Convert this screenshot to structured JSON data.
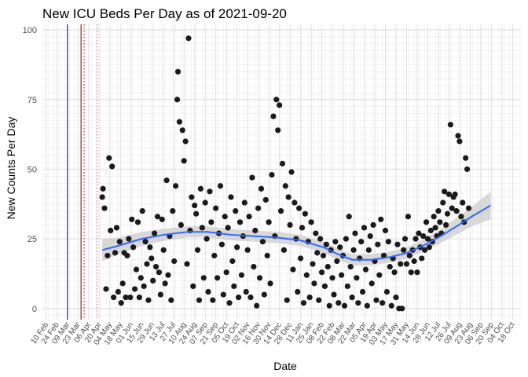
{
  "chart_data": {
    "type": "scatter",
    "title": "New ICU Beds Per Day as of 2021-09-20",
    "xlabel": "Date",
    "ylabel": "New Counts Per Day",
    "ylim": [
      -4,
      102
    ],
    "y_ticks": [
      0,
      25,
      50,
      75,
      100
    ],
    "grid": true,
    "x_range": [
      "2020-02-06",
      "2021-10-28"
    ],
    "x_tick_labels": [
      "10 Feb",
      "24 Feb",
      "09 Mar",
      "23 Mar",
      "06 Apr",
      "20 Apr",
      "04 May",
      "18 May",
      "01 Jun",
      "15 Jun",
      "29 Jun",
      "13 Jul",
      "27 Jul",
      "10 Aug",
      "24 Aug",
      "07 Sep",
      "21 Sep",
      "05 Oct",
      "19 Oct",
      "02 Nov",
      "16 Nov",
      "30 Nov",
      "14 Dec",
      "28 Dec",
      "11 Jan",
      "25 Jan",
      "08 Feb",
      "22 Feb",
      "08 Mar",
      "22 Mar",
      "05 Apr",
      "19 Apr",
      "03 May",
      "17 May",
      "31 May",
      "14 Jun",
      "28 Jun",
      "12 Jul",
      "26 Jul",
      "09 Aug",
      "23 Aug",
      "06 Sep",
      "20 Sep",
      "04 Oct",
      "18 Oct"
    ],
    "reference_lines": [
      {
        "date": "2020-03-09",
        "style": "solid",
        "color": "#00008b"
      },
      {
        "date": "2020-03-27",
        "style": "solid",
        "color": "#8b0000"
      },
      {
        "date": "2020-03-31",
        "style": "dotted",
        "color": "#8b0000"
      },
      {
        "date": "2020-04-17",
        "style": "dotted",
        "color": "#cc6677"
      }
    ],
    "trend": {
      "color": "#3366ff",
      "band_color": "#cccccc",
      "points": [
        [
          "2020-04-24",
          21
        ],
        [
          "2020-05-15",
          22.5
        ],
        [
          "2020-06-15",
          25
        ],
        [
          "2020-07-15",
          26.5
        ],
        [
          "2020-08-15",
          27.5
        ],
        [
          "2020-09-10",
          27.5
        ],
        [
          "2020-10-10",
          26.5
        ],
        [
          "2020-11-10",
          26
        ],
        [
          "2020-12-10",
          25.5
        ],
        [
          "2021-01-10",
          24.5
        ],
        [
          "2021-02-10",
          22
        ],
        [
          "2021-03-01",
          19.5
        ],
        [
          "2021-03-20",
          17.5
        ],
        [
          "2021-04-15",
          17.5
        ],
        [
          "2021-05-10",
          18.5
        ],
        [
          "2021-06-01",
          20
        ],
        [
          "2021-06-25",
          23
        ],
        [
          "2021-07-15",
          26
        ],
        [
          "2021-08-05",
          29.5
        ],
        [
          "2021-08-25",
          33
        ],
        [
          "2021-09-19",
          37
        ]
      ],
      "band_halfwidth": [
        4,
        3,
        2.5,
        2.2,
        2,
        2,
        2,
        2,
        2,
        2,
        2,
        2,
        2,
        2,
        2,
        2,
        2.2,
        2.5,
        3,
        3.5,
        5
      ]
    },
    "points": [
      [
        "2020-04-24",
        40
      ],
      [
        "2020-04-25",
        43
      ],
      [
        "2020-04-27",
        36
      ],
      [
        "2020-04-29",
        7
      ],
      [
        "2020-05-01",
        19
      ],
      [
        "2020-05-03",
        54
      ],
      [
        "2020-05-05",
        28
      ],
      [
        "2020-05-07",
        51
      ],
      [
        "2020-05-09",
        4
      ],
      [
        "2020-05-11",
        20
      ],
      [
        "2020-05-13",
        29
      ],
      [
        "2020-05-15",
        6
      ],
      [
        "2020-05-17",
        24
      ],
      [
        "2020-05-19",
        2
      ],
      [
        "2020-05-21",
        9
      ],
      [
        "2020-05-23",
        20
      ],
      [
        "2020-05-25",
        4
      ],
      [
        "2020-05-27",
        19
      ],
      [
        "2020-05-29",
        25
      ],
      [
        "2020-05-31",
        4
      ],
      [
        "2020-06-02",
        32
      ],
      [
        "2020-06-04",
        22
      ],
      [
        "2020-06-06",
        7
      ],
      [
        "2020-06-08",
        14
      ],
      [
        "2020-06-10",
        31
      ],
      [
        "2020-06-12",
        4
      ],
      [
        "2020-06-14",
        11
      ],
      [
        "2020-06-16",
        35
      ],
      [
        "2020-06-18",
        8
      ],
      [
        "2020-06-20",
        24
      ],
      [
        "2020-06-22",
        16
      ],
      [
        "2020-06-24",
        3
      ],
      [
        "2020-06-26",
        22
      ],
      [
        "2020-06-28",
        18
      ],
      [
        "2020-06-30",
        10
      ],
      [
        "2020-07-02",
        27
      ],
      [
        "2020-07-04",
        15
      ],
      [
        "2020-07-06",
        33
      ],
      [
        "2020-07-08",
        13
      ],
      [
        "2020-07-10",
        5
      ],
      [
        "2020-07-12",
        32
      ],
      [
        "2020-07-14",
        21
      ],
      [
        "2020-07-16",
        9
      ],
      [
        "2020-07-18",
        46
      ],
      [
        "2020-07-20",
        12
      ],
      [
        "2020-07-22",
        26
      ],
      [
        "2020-07-24",
        3
      ],
      [
        "2020-07-26",
        35
      ],
      [
        "2020-07-28",
        17
      ],
      [
        "2020-07-30",
        44
      ],
      [
        "2020-08-01",
        75
      ],
      [
        "2020-08-02",
        85
      ],
      [
        "2020-08-04",
        67
      ],
      [
        "2020-08-06",
        30
      ],
      [
        "2020-08-08",
        64
      ],
      [
        "2020-08-10",
        53
      ],
      [
        "2020-08-12",
        60
      ],
      [
        "2020-08-14",
        16
      ],
      [
        "2020-08-16",
        97
      ],
      [
        "2020-08-18",
        28
      ],
      [
        "2020-08-20",
        40
      ],
      [
        "2020-08-22",
        8
      ],
      [
        "2020-08-24",
        37
      ],
      [
        "2020-08-26",
        34
      ],
      [
        "2020-08-28",
        21
      ],
      [
        "2020-08-30",
        3
      ],
      [
        "2020-09-01",
        43
      ],
      [
        "2020-09-03",
        29
      ],
      [
        "2020-09-05",
        11
      ],
      [
        "2020-09-07",
        38
      ],
      [
        "2020-09-09",
        25
      ],
      [
        "2020-09-11",
        6
      ],
      [
        "2020-09-13",
        42
      ],
      [
        "2020-09-15",
        31
      ],
      [
        "2020-09-17",
        3
      ],
      [
        "2020-09-19",
        19
      ],
      [
        "2020-09-21",
        36
      ],
      [
        "2020-09-23",
        11
      ],
      [
        "2020-09-25",
        27
      ],
      [
        "2020-09-27",
        44
      ],
      [
        "2020-09-29",
        23
      ],
      [
        "2020-10-01",
        5
      ],
      [
        "2020-10-03",
        33
      ],
      [
        "2020-10-05",
        13
      ],
      [
        "2020-10-07",
        29
      ],
      [
        "2020-10-09",
        2
      ],
      [
        "2020-10-11",
        40
      ],
      [
        "2020-10-13",
        17
      ],
      [
        "2020-10-15",
        8
      ],
      [
        "2020-10-17",
        35
      ],
      [
        "2020-10-19",
        22
      ],
      [
        "2020-10-21",
        4
      ],
      [
        "2020-10-23",
        31
      ],
      [
        "2020-10-25",
        12
      ],
      [
        "2020-10-27",
        26
      ],
      [
        "2020-10-29",
        38
      ],
      [
        "2020-10-31",
        6
      ],
      [
        "2020-11-02",
        21
      ],
      [
        "2020-11-04",
        33
      ],
      [
        "2020-11-06",
        4
      ],
      [
        "2020-11-08",
        47
      ],
      [
        "2020-11-10",
        15
      ],
      [
        "2020-11-12",
        28
      ],
      [
        "2020-11-14",
        1
      ],
      [
        "2020-11-16",
        36
      ],
      [
        "2020-11-18",
        11
      ],
      [
        "2020-11-20",
        43
      ],
      [
        "2020-11-22",
        24
      ],
      [
        "2020-11-24",
        5
      ],
      [
        "2020-11-26",
        39
      ],
      [
        "2020-11-28",
        19
      ],
      [
        "2020-11-30",
        31
      ],
      [
        "2020-12-02",
        9
      ],
      [
        "2020-12-04",
        48
      ],
      [
        "2020-12-06",
        69
      ],
      [
        "2020-12-08",
        26
      ],
      [
        "2020-12-10",
        75
      ],
      [
        "2020-12-12",
        64
      ],
      [
        "2020-12-14",
        73
      ],
      [
        "2020-12-16",
        35
      ],
      [
        "2020-12-18",
        52
      ],
      [
        "2020-12-20",
        21
      ],
      [
        "2020-12-22",
        44
      ],
      [
        "2020-12-24",
        3
      ],
      [
        "2020-12-26",
        40
      ],
      [
        "2020-12-28",
        30
      ],
      [
        "2020-12-30",
        49
      ],
      [
        "2021-01-01",
        14
      ],
      [
        "2021-01-03",
        38
      ],
      [
        "2021-01-05",
        25
      ],
      [
        "2021-01-07",
        6
      ],
      [
        "2021-01-09",
        36
      ],
      [
        "2021-01-11",
        18
      ],
      [
        "2021-01-13",
        29
      ],
      [
        "2021-01-15",
        2
      ],
      [
        "2021-01-17",
        34
      ],
      [
        "2021-01-19",
        12
      ],
      [
        "2021-01-21",
        24
      ],
      [
        "2021-01-23",
        4
      ],
      [
        "2021-01-25",
        31
      ],
      [
        "2021-01-27",
        16
      ],
      [
        "2021-01-29",
        9
      ],
      [
        "2021-01-31",
        27
      ],
      [
        "2021-02-02",
        20
      ],
      [
        "2021-02-04",
        3
      ],
      [
        "2021-02-06",
        25
      ],
      [
        "2021-02-08",
        13
      ],
      [
        "2021-02-10",
        19
      ],
      [
        "2021-02-12",
        8
      ],
      [
        "2021-02-14",
        23
      ],
      [
        "2021-02-16",
        15
      ],
      [
        "2021-02-18",
        1
      ],
      [
        "2021-02-20",
        21
      ],
      [
        "2021-02-22",
        11
      ],
      [
        "2021-02-24",
        5
      ],
      [
        "2021-02-26",
        24
      ],
      [
        "2021-02-28",
        17
      ],
      [
        "2021-03-02",
        2
      ],
      [
        "2021-03-04",
        22
      ],
      [
        "2021-03-06",
        12
      ],
      [
        "2021-03-08",
        19
      ],
      [
        "2021-03-10",
        1
      ],
      [
        "2021-03-12",
        25
      ],
      [
        "2021-03-14",
        8
      ],
      [
        "2021-03-16",
        33
      ],
      [
        "2021-03-18",
        15
      ],
      [
        "2021-03-20",
        4
      ],
      [
        "2021-03-22",
        21
      ],
      [
        "2021-03-24",
        27
      ],
      [
        "2021-03-26",
        11
      ],
      [
        "2021-03-28",
        2
      ],
      [
        "2021-03-30",
        18
      ],
      [
        "2021-04-01",
        24
      ],
      [
        "2021-04-03",
        6
      ],
      [
        "2021-04-05",
        29
      ],
      [
        "2021-04-07",
        14
      ],
      [
        "2021-04-09",
        1
      ],
      [
        "2021-04-11",
        21
      ],
      [
        "2021-04-13",
        26
      ],
      [
        "2021-04-15",
        9
      ],
      [
        "2021-04-17",
        30
      ],
      [
        "2021-04-19",
        17
      ],
      [
        "2021-04-21",
        3
      ],
      [
        "2021-04-23",
        23
      ],
      [
        "2021-04-25",
        12
      ],
      [
        "2021-04-27",
        32
      ],
      [
        "2021-04-29",
        2
      ],
      [
        "2021-05-01",
        19
      ],
      [
        "2021-05-03",
        28
      ],
      [
        "2021-05-05",
        6
      ],
      [
        "2021-05-07",
        24
      ],
      [
        "2021-05-09",
        15
      ],
      [
        "2021-05-11",
        1
      ],
      [
        "2021-05-13",
        18
      ],
      [
        "2021-05-15",
        13
      ],
      [
        "2021-05-17",
        4
      ],
      [
        "2021-05-19",
        23
      ],
      [
        "2021-05-21",
        0
      ],
      [
        "2021-05-23",
        16
      ],
      [
        "2021-05-25",
        0
      ],
      [
        "2021-05-27",
        21
      ],
      [
        "2021-05-29",
        25
      ],
      [
        "2021-05-31",
        16
      ],
      [
        "2021-06-02",
        33
      ],
      [
        "2021-06-04",
        19
      ],
      [
        "2021-06-06",
        13
      ],
      [
        "2021-06-08",
        21
      ],
      [
        "2021-06-10",
        17
      ],
      [
        "2021-06-12",
        25
      ],
      [
        "2021-06-14",
        13
      ],
      [
        "2021-06-16",
        27
      ],
      [
        "2021-06-18",
        22
      ],
      [
        "2021-06-20",
        18
      ],
      [
        "2021-06-22",
        26
      ],
      [
        "2021-06-24",
        21
      ],
      [
        "2021-06-26",
        31
      ],
      [
        "2021-06-28",
        25
      ],
      [
        "2021-06-30",
        22
      ],
      [
        "2021-07-02",
        28
      ],
      [
        "2021-07-04",
        24
      ],
      [
        "2021-07-06",
        33
      ],
      [
        "2021-07-08",
        29
      ],
      [
        "2021-07-10",
        26
      ],
      [
        "2021-07-12",
        35
      ],
      [
        "2021-07-14",
        31
      ],
      [
        "2021-07-16",
        27
      ],
      [
        "2021-07-18",
        38
      ],
      [
        "2021-07-20",
        42
      ],
      [
        "2021-07-22",
        30
      ],
      [
        "2021-07-24",
        34
      ],
      [
        "2021-07-26",
        41
      ],
      [
        "2021-07-28",
        66
      ],
      [
        "2021-07-30",
        36
      ],
      [
        "2021-08-01",
        40
      ],
      [
        "2021-08-03",
        41
      ],
      [
        "2021-08-05",
        35
      ],
      [
        "2021-08-07",
        62
      ],
      [
        "2021-08-09",
        60
      ],
      [
        "2021-08-11",
        33
      ],
      [
        "2021-08-13",
        38
      ],
      [
        "2021-08-15",
        31
      ],
      [
        "2021-08-17",
        54
      ],
      [
        "2021-08-19",
        50
      ],
      [
        "2021-08-21",
        36
      ]
    ]
  }
}
